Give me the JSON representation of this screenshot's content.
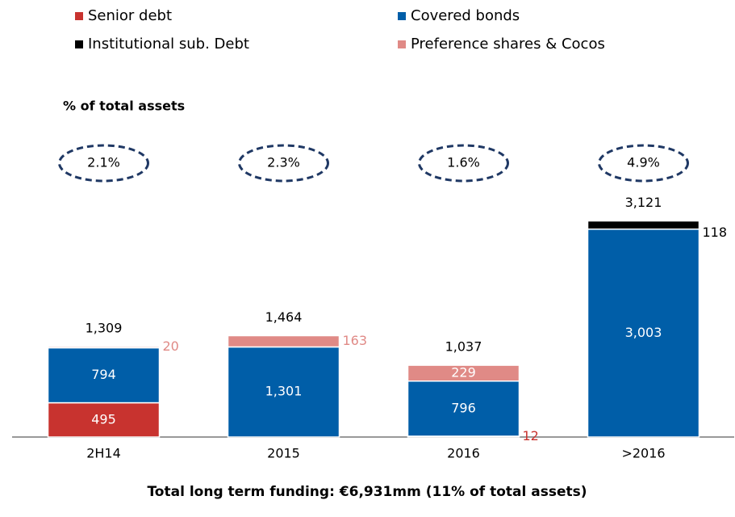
{
  "chart_data": {
    "type": "stacked_bar",
    "subtitle": "% of total assets",
    "footer": "Total long term funding: €6,931mm (11% of total assets)",
    "categories": [
      "2H14",
      "2015",
      "2016",
      ">2016"
    ],
    "series": [
      {
        "name": "Senior debt",
        "color": "#c8332f",
        "values": [
          495,
          null,
          12,
          null
        ]
      },
      {
        "name": "Covered bonds",
        "color": "#005ea8",
        "values": [
          794,
          1301,
          796,
          3003
        ],
        "value_labels": [
          "794",
          "1,301",
          "796",
          "3,003"
        ]
      },
      {
        "name": "Institutional sub. Debt",
        "color": "#000000",
        "values": [
          null,
          null,
          null,
          118
        ]
      },
      {
        "name": "Preference shares & Cocos",
        "color": "#e08a86",
        "values": [
          20,
          163,
          229,
          null
        ]
      }
    ],
    "totals": {
      "values": [
        1309,
        1464,
        1037,
        3121
      ],
      "value_labels": [
        "1,309",
        "1,464",
        "1,037",
        "3,121"
      ]
    },
    "pct_of_assets": {
      "values": [
        2.1,
        2.3,
        1.6,
        4.9
      ],
      "value_labels": [
        "2.1%",
        "2.3%",
        "1.6%",
        "4.9%"
      ]
    },
    "ylim": [
      0,
      3500
    ]
  }
}
